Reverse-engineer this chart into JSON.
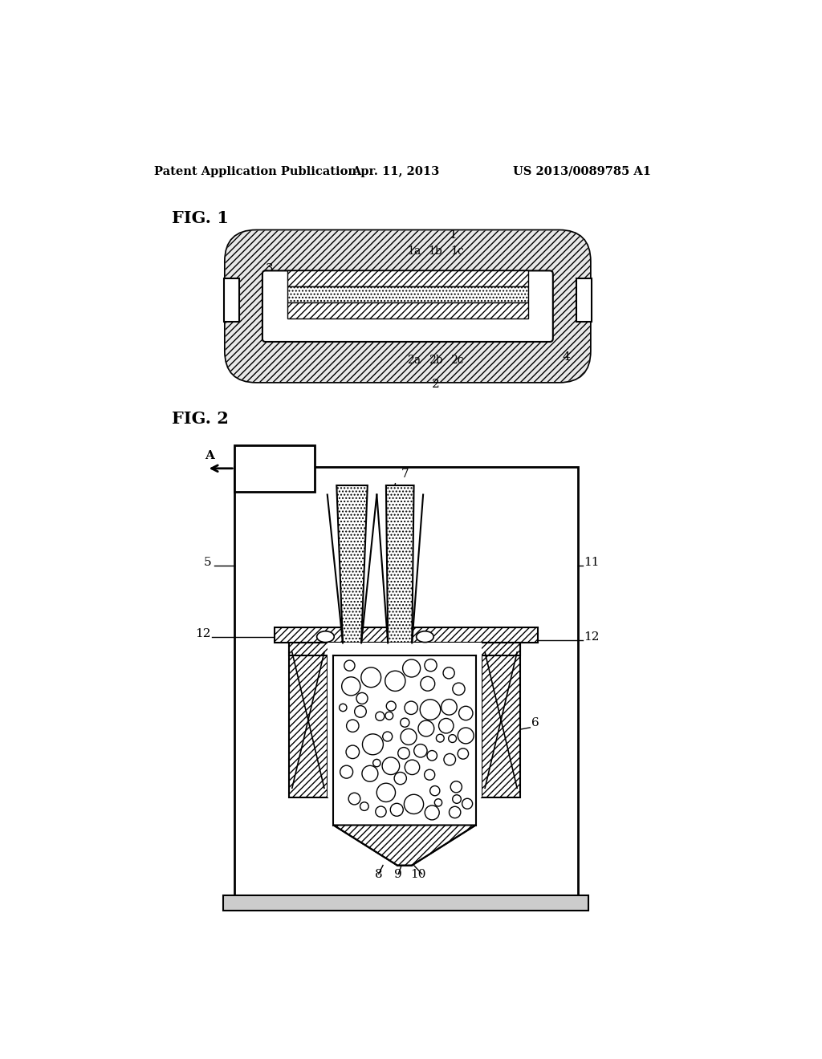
{
  "bg_color": "#ffffff",
  "header_left": "Patent Application Publication",
  "header_center": "Apr. 11, 2013",
  "header_right": "US 2013/0089785 A1",
  "fig1_label": "FIG. 1",
  "fig2_label": "FIG. 2"
}
